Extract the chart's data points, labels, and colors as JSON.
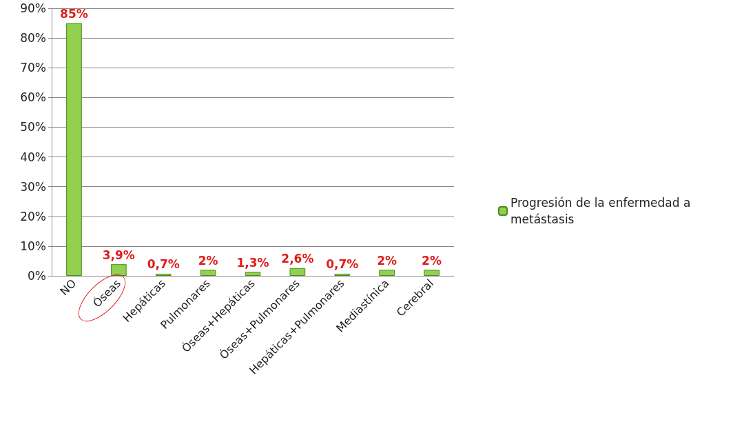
{
  "chart_data": {
    "type": "bar",
    "categories": [
      "NO",
      "Óseas",
      "Hepáticas",
      "Pulmonares",
      "Óseas+Hepáticas",
      "Óseas+Pulmonares",
      "Hepáticas+Pulmonares",
      "Mediastínica",
      "Cerebral"
    ],
    "series": [
      {
        "name": "Progresión de la enfermedad a metástasis",
        "color": "#92d050",
        "values": [
          85,
          3.9,
          0.7,
          2,
          1.3,
          2.6,
          0.7,
          2,
          2
        ],
        "value_labels": [
          "85%",
          "3,9%",
          "0,7%",
          "2%",
          "1,3%",
          "2,6%",
          "0,7%",
          "2%",
          "2%"
        ]
      }
    ],
    "ylim": [
      0,
      90
    ],
    "yticks": [
      {
        "value": 0,
        "label": "0%"
      },
      {
        "value": 10,
        "label": "10%"
      },
      {
        "value": 20,
        "label": "20%"
      },
      {
        "value": 30,
        "label": "30%"
      },
      {
        "value": 40,
        "label": "40%"
      },
      {
        "value": 50,
        "label": "50%"
      },
      {
        "value": 60,
        "label": "60%"
      },
      {
        "value": 70,
        "label": "70%"
      },
      {
        "value": 80,
        "label": "80%"
      },
      {
        "value": 90,
        "label": "90%"
      }
    ],
    "grid": "y",
    "legend": "right"
  }
}
